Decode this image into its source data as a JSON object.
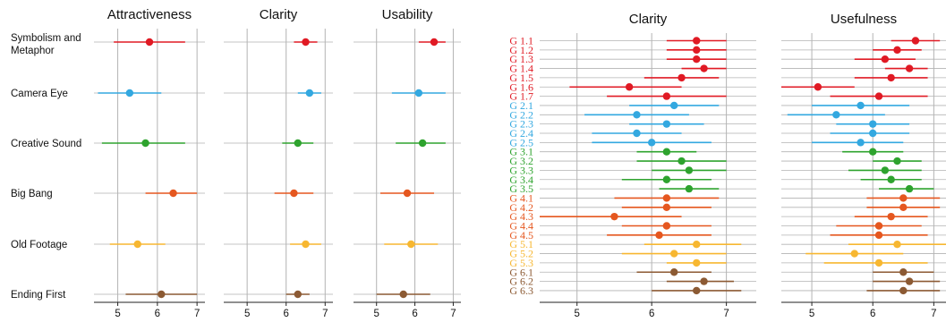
{
  "colors": {
    "red": "#e01a24",
    "blue": "#33a8e0",
    "green": "#2ea32e",
    "orange": "#e5571f",
    "yellow": "#f7b731",
    "brown": "#8c5a33",
    "grid": "#b3b3b3",
    "axis": "#222222"
  },
  "chart_data": [
    {
      "type": "scatter",
      "panel": "left",
      "title": "Attractiveness",
      "xticks": [
        5,
        6,
        7
      ],
      "xlim": [
        4.4,
        7.2
      ],
      "rows": [
        "Symbolism and Metaphor",
        "Camera Eye",
        "Creative Sound",
        "Big Bang",
        "Old Footage",
        "Ending First"
      ],
      "row_colors": [
        "red",
        "blue",
        "green",
        "orange",
        "yellow",
        "brown"
      ],
      "mean": [
        5.8,
        5.3,
        5.7,
        6.4,
        5.5,
        6.1
      ],
      "ci_low": [
        4.9,
        4.5,
        4.6,
        5.7,
        4.8,
        5.2
      ],
      "ci_high": [
        6.7,
        6.1,
        6.7,
        7.0,
        6.2,
        7.0
      ]
    },
    {
      "type": "scatter",
      "panel": "left",
      "title": "Clarity",
      "xticks": [
        5,
        6,
        7
      ],
      "xlim": [
        4.4,
        7.2
      ],
      "rows": [
        "Symbolism and Metaphor",
        "Camera Eye",
        "Creative Sound",
        "Big Bang",
        "Old Footage",
        "Ending First"
      ],
      "row_colors": [
        "red",
        "blue",
        "green",
        "orange",
        "yellow",
        "brown"
      ],
      "mean": [
        6.5,
        6.6,
        6.3,
        6.2,
        6.5,
        6.3
      ],
      "ci_low": [
        6.2,
        6.3,
        5.9,
        5.7,
        6.1,
        6.0
      ],
      "ci_high": [
        6.8,
        6.9,
        6.7,
        6.7,
        6.9,
        6.6
      ]
    },
    {
      "type": "scatter",
      "panel": "left",
      "title": "Usability",
      "xticks": [
        5,
        6,
        7
      ],
      "xlim": [
        4.4,
        7.2
      ],
      "rows": [
        "Symbolism and Metaphor",
        "Camera Eye",
        "Creative Sound",
        "Big Bang",
        "Old Footage",
        "Ending First"
      ],
      "row_colors": [
        "red",
        "blue",
        "green",
        "orange",
        "yellow",
        "brown"
      ],
      "mean": [
        6.5,
        6.1,
        6.2,
        5.8,
        5.9,
        5.7
      ],
      "ci_low": [
        6.1,
        5.4,
        5.5,
        5.1,
        5.2,
        5.0
      ],
      "ci_high": [
        6.8,
        6.8,
        6.8,
        6.5,
        6.6,
        6.4
      ]
    },
    {
      "type": "scatter",
      "panel": "right",
      "title": "Clarity",
      "xticks": [
        5,
        6,
        7
      ],
      "xlim": [
        4.5,
        7.4
      ],
      "rows": [
        "G 1.1",
        "G 1.2",
        "G 1.3",
        "G 1.4",
        "G 1.5",
        "G 1.6",
        "G 1.7",
        "G 2.1",
        "G 2.2",
        "G 2.3",
        "G 2.4",
        "G 2.5",
        "G 3.1",
        "G 3.2",
        "G 3.3",
        "G 3.4",
        "G 3.5",
        "G 4.1",
        "G 4.2",
        "G 4.3",
        "G 4.4",
        "G 4.5",
        "G 5.1",
        "G 5.2",
        "G 5.3",
        "G 6.1",
        "G 6.2",
        "G 6.3"
      ],
      "row_colors": [
        "red",
        "red",
        "red",
        "red",
        "red",
        "red",
        "red",
        "blue",
        "blue",
        "blue",
        "blue",
        "blue",
        "green",
        "green",
        "green",
        "green",
        "green",
        "orange",
        "orange",
        "orange",
        "orange",
        "orange",
        "yellow",
        "yellow",
        "yellow",
        "brown",
        "brown",
        "brown"
      ],
      "mean": [
        6.6,
        6.6,
        6.6,
        6.7,
        6.4,
        5.7,
        6.2,
        6.3,
        5.8,
        6.2,
        5.8,
        6.0,
        6.2,
        6.4,
        6.5,
        6.2,
        6.5,
        6.2,
        6.2,
        5.5,
        6.2,
        6.1,
        6.6,
        6.3,
        6.6,
        6.3,
        6.7,
        6.6
      ],
      "ci_low": [
        6.2,
        6.2,
        6.2,
        6.4,
        5.9,
        4.9,
        5.4,
        5.7,
        5.1,
        5.7,
        5.2,
        5.2,
        5.8,
        5.8,
        6.0,
        5.6,
        6.1,
        5.5,
        5.6,
        4.5,
        5.6,
        5.4,
        5.9,
        5.6,
        6.2,
        5.8,
        6.2,
        6.0
      ],
      "ci_high": [
        7.0,
        7.0,
        7.0,
        7.0,
        6.9,
        6.4,
        7.0,
        6.9,
        6.5,
        6.7,
        6.4,
        6.8,
        6.6,
        7.0,
        7.0,
        6.8,
        6.9,
        6.9,
        6.8,
        6.4,
        6.8,
        6.8,
        7.2,
        7.0,
        7.0,
        6.8,
        7.1,
        7.2
      ]
    },
    {
      "type": "scatter",
      "panel": "right",
      "title": "Usefulness",
      "xticks": [
        5,
        6,
        7
      ],
      "xlim": [
        4.5,
        7.2
      ],
      "rows": [
        "G 1.1",
        "G 1.2",
        "G 1.3",
        "G 1.4",
        "G 1.5",
        "G 1.6",
        "G 1.7",
        "G 2.1",
        "G 2.2",
        "G 2.3",
        "G 2.4",
        "G 2.5",
        "G 3.1",
        "G 3.2",
        "G 3.3",
        "G 3.4",
        "G 3.5",
        "G 4.1",
        "G 4.2",
        "G 4.3",
        "G 4.4",
        "G 4.5",
        "G 5.1",
        "G 5.2",
        "G 5.3",
        "G 6.1",
        "G 6.2",
        "G 6.3"
      ],
      "row_colors": [
        "red",
        "red",
        "red",
        "red",
        "red",
        "red",
        "red",
        "blue",
        "blue",
        "blue",
        "blue",
        "blue",
        "green",
        "green",
        "green",
        "green",
        "green",
        "orange",
        "orange",
        "orange",
        "orange",
        "orange",
        "yellow",
        "yellow",
        "yellow",
        "brown",
        "brown",
        "brown"
      ],
      "mean": [
        6.7,
        6.4,
        6.2,
        6.6,
        6.3,
        5.1,
        6.1,
        5.8,
        5.4,
        6.0,
        6.0,
        5.8,
        6.0,
        6.4,
        6.2,
        6.3,
        6.6,
        6.5,
        6.5,
        6.3,
        6.1,
        6.1,
        6.4,
        5.7,
        6.1,
        6.5,
        6.6,
        6.5
      ],
      "ci_low": [
        6.3,
        6.0,
        5.7,
        6.2,
        5.7,
        4.5,
        5.3,
        5.0,
        4.6,
        5.4,
        5.3,
        5.0,
        5.5,
        6.0,
        5.6,
        5.8,
        6.1,
        5.9,
        5.9,
        5.7,
        5.4,
        5.3,
        5.6,
        4.9,
        5.2,
        6.0,
        6.0,
        5.9
      ],
      "ci_high": [
        7.1,
        6.8,
        6.7,
        6.9,
        6.9,
        5.7,
        6.9,
        6.6,
        6.2,
        6.6,
        6.6,
        6.5,
        6.5,
        6.8,
        6.8,
        6.8,
        7.0,
        7.1,
        7.1,
        6.9,
        6.8,
        6.9,
        7.2,
        6.5,
        6.9,
        7.0,
        7.1,
        7.1
      ]
    }
  ]
}
